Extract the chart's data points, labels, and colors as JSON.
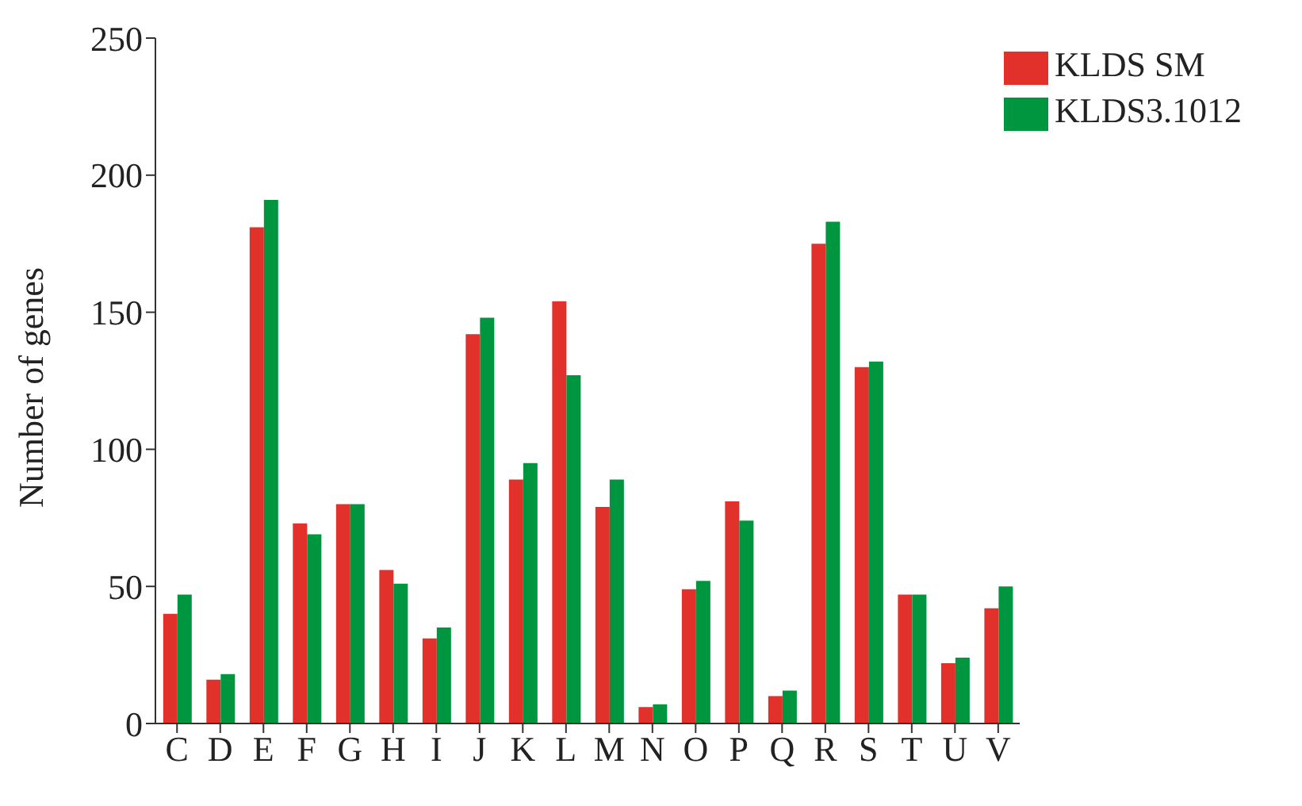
{
  "chart_data": {
    "type": "bar",
    "ylabel": "Number of genes",
    "categories": [
      "C",
      "D",
      "E",
      "F",
      "G",
      "H",
      "I",
      "J",
      "K",
      "L",
      "M",
      "N",
      "O",
      "P",
      "Q",
      "R",
      "S",
      "T",
      "U",
      "V"
    ],
    "series": [
      {
        "name": "KLDS SM",
        "color": "#e2302a",
        "values": [
          40,
          16,
          181,
          73,
          80,
          56,
          31,
          142,
          89,
          154,
          79,
          6,
          49,
          81,
          10,
          175,
          130,
          47,
          22,
          42
        ]
      },
      {
        "name": "KLDS3.1012",
        "color": "#00963f",
        "values": [
          47,
          18,
          191,
          69,
          80,
          51,
          35,
          148,
          95,
          127,
          89,
          7,
          52,
          74,
          12,
          183,
          132,
          47,
          24,
          50
        ]
      }
    ],
    "ylim": [
      0,
      250
    ],
    "yticks": [
      0,
      50,
      100,
      150,
      200,
      250
    ],
    "legend": "top right"
  }
}
